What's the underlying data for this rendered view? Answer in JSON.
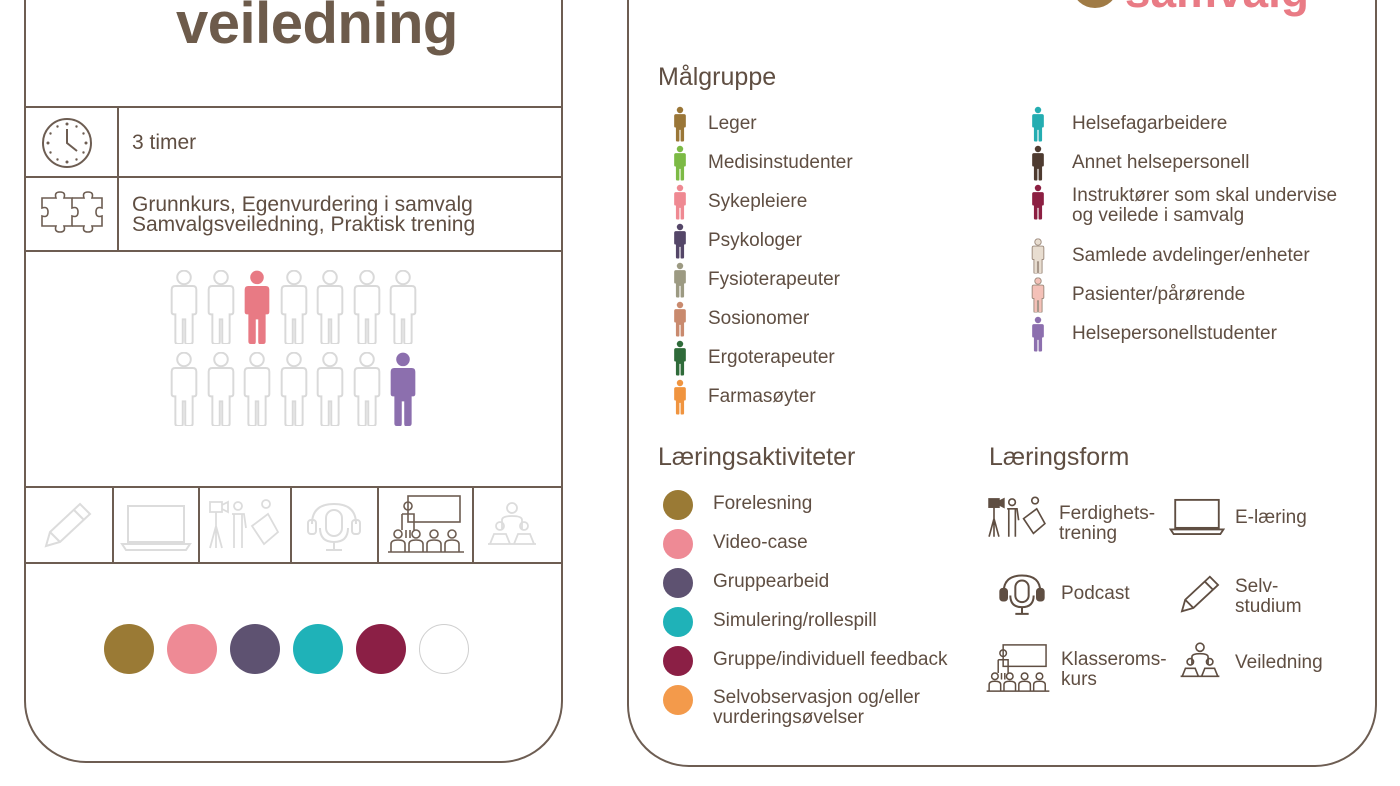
{
  "card": {
    "title": "veiledning",
    "duration": "3 timer",
    "prereq_line1": "Grunnkurs, Egenvurdering i samvalg",
    "prereq_line2": "Samvalgsveiledning, Praktisk trening"
  },
  "people_grid": {
    "rows": [
      [
        "#e0e0e0",
        "#e0e0e0",
        "#e87a84",
        "#e0e0e0",
        "#e0e0e0",
        "#e0e0e0",
        "#e0e0e0"
      ],
      [
        "#e0e0e0",
        "#e0e0e0",
        "#e0e0e0",
        "#e0e0e0",
        "#e0e0e0",
        "#e0e0e0",
        "#8c6fae"
      ]
    ]
  },
  "activity_dots": [
    "#9a7a35",
    "#ee8a95",
    "#5e5271",
    "#1fb2b8",
    "#8b1f45",
    "#ffffff"
  ],
  "logo": {
    "text": "samvalg",
    "blob_color": "#a07b45"
  },
  "malgruppe": {
    "title": "Målgruppe",
    "left": [
      {
        "label": "Leger",
        "color": "#9a7637"
      },
      {
        "label": "Medisinstudenter",
        "color": "#7cba45"
      },
      {
        "label": "Sykepleiere",
        "color": "#ef8992"
      },
      {
        "label": "Psykologer",
        "color": "#544668"
      },
      {
        "label": "Fysioterapeuter",
        "color": "#9c9a82"
      },
      {
        "label": "Sosionomer",
        "color": "#c98a6e"
      },
      {
        "label": "Ergoterapeuter",
        "color": "#2f6b3a"
      },
      {
        "label": "Farmasøyter",
        "color": "#f0943f"
      }
    ],
    "right": [
      {
        "label": "Helsefagarbeidere",
        "color": "#24adb1"
      },
      {
        "label": "Annet helsepersonell",
        "color": "#4e3b30"
      },
      {
        "label_line1": "Instruktører som skal undervise",
        "label_line2": "og veilede i samvalg",
        "color": "#8c1f42"
      },
      {
        "label": "Samlede avdelinger/enheter",
        "color": "#e8ddd0"
      },
      {
        "label": "Pasienter/pårørende",
        "color": "#f4c1b8"
      },
      {
        "label": "Helsepersonellstudenter",
        "color": "#8c6fae"
      }
    ]
  },
  "laeringsaktiviteter": {
    "title": "Læringsaktiviteter",
    "items": [
      {
        "label": "Forelesning",
        "color": "#9a7a35"
      },
      {
        "label": "Video-case",
        "color": "#ee8a95"
      },
      {
        "label": "Gruppearbeid",
        "color": "#5e5271"
      },
      {
        "label": "Simulering/rollespill",
        "color": "#1fb2b8"
      },
      {
        "label": "Gruppe/individuell feedback",
        "color": "#8b1f45"
      },
      {
        "label_line1": "Selvobservasjon og/eller",
        "label_line2": "vurderingsøvelser",
        "color": "#f39a4b"
      }
    ]
  },
  "laeringsform": {
    "title": "Læringsform",
    "items": [
      {
        "icon": "camera-training-icon",
        "label_line1": "Ferdighets-",
        "label_line2": "trening"
      },
      {
        "icon": "laptop-icon",
        "label_line1": "E-læring",
        "label_line2": ""
      },
      {
        "icon": "podcast-icon",
        "label_line1": "Podcast",
        "label_line2": ""
      },
      {
        "icon": "pencil-icon",
        "label_line1": "Selv-",
        "label_line2": "studium"
      },
      {
        "icon": "classroom-icon",
        "label_line1": "Klasseroms-",
        "label_line2": "kurs"
      },
      {
        "icon": "mentoring-icon",
        "label_line1": "Veiledning",
        "label_line2": ""
      }
    ]
  }
}
